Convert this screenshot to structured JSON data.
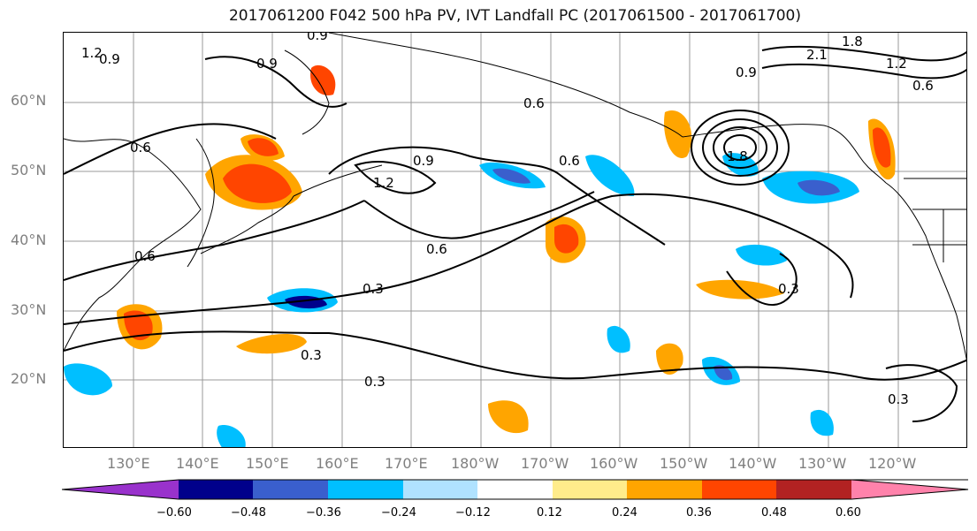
{
  "title": "2017061200 F042 500 hPa PV, IVT Landfall PC (2017061500 - 2017061700)",
  "lat_labels": [
    "60°N",
    "50°N",
    "40°N",
    "30°N",
    "20°N"
  ],
  "lon_labels": [
    "130°E",
    "140°E",
    "150°E",
    "160°E",
    "170°E",
    "180°W",
    "170°W",
    "160°W",
    "150°W",
    "140°W",
    "130°W",
    "120°W"
  ],
  "contour_labels": [
    "1.2",
    "0.9",
    "0.9",
    "0.9",
    "0.6",
    "0.6",
    "1.2",
    "0.9",
    "0.6",
    "0.6",
    "0.6",
    "0.3",
    "0.3",
    "0.3",
    "0.3",
    "0.3",
    "1.8",
    "2.1",
    "1.8",
    "0.9",
    "1.2",
    "0.6"
  ],
  "colorbar": {
    "ticks": [
      "−0.60",
      "−0.48",
      "−0.36",
      "−0.24",
      "−0.12",
      "0.12",
      "0.24",
      "0.36",
      "0.48",
      "0.60"
    ],
    "colors": [
      "#9932cc",
      "#00008b",
      "#3a5fcd",
      "#00bfff",
      "#b0e2ff",
      "#ffffff",
      "#ffec8b",
      "#ffa500",
      "#ff4500",
      "#b22222",
      "#ff82ab"
    ]
  }
}
